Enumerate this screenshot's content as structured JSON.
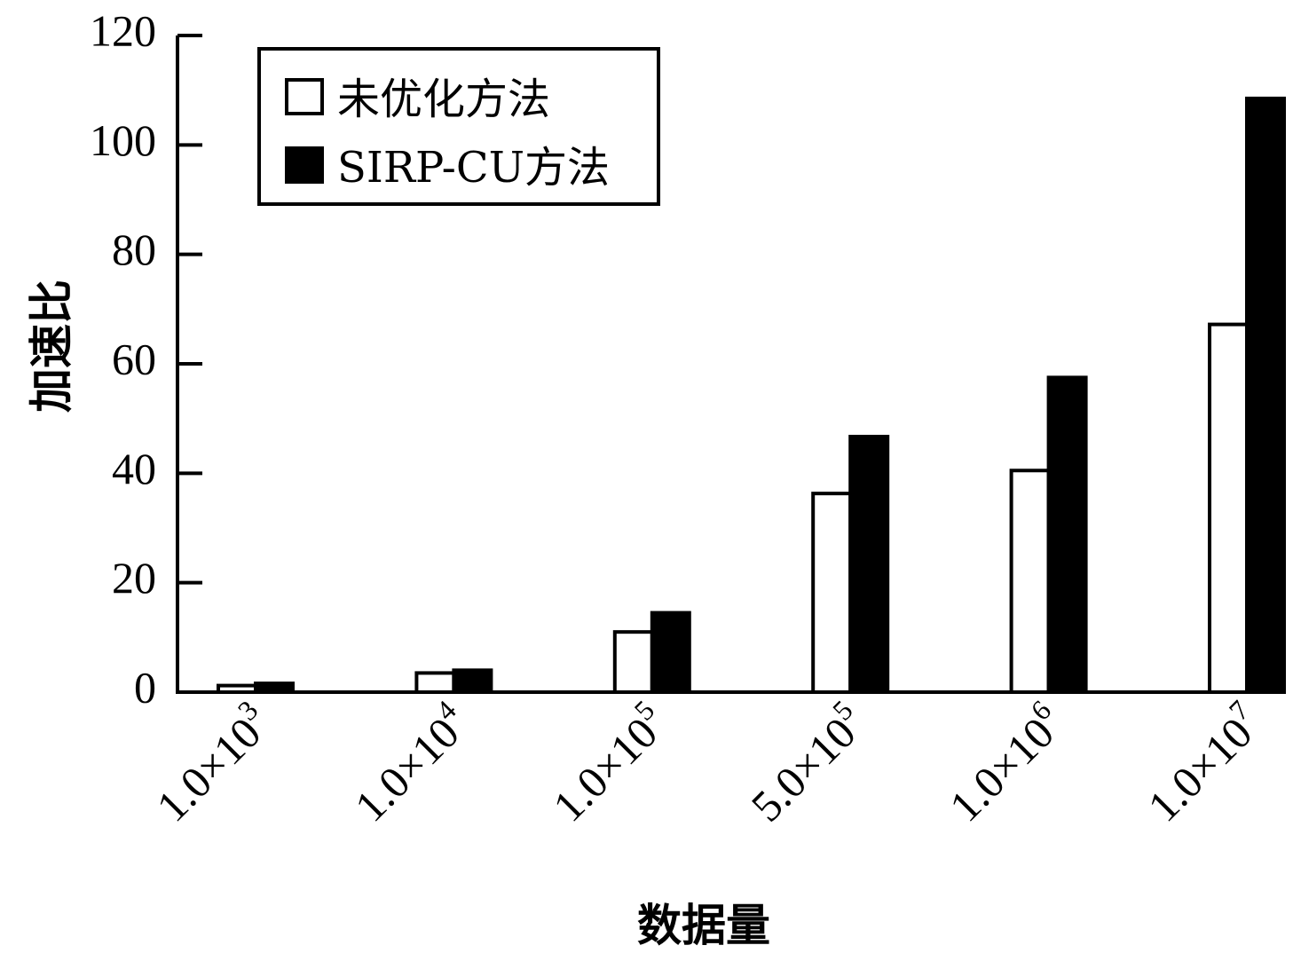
{
  "chart_data": {
    "type": "bar",
    "title": "",
    "xlabel": "数据量",
    "ylabel": "加速比",
    "ylim": [
      0,
      120
    ],
    "yticks": [
      "0",
      "20",
      "40",
      "60",
      "80",
      "100",
      "120"
    ],
    "categories": [
      {
        "mantissa": "1.0",
        "times": "×",
        "base": "10",
        "exp": "3"
      },
      {
        "mantissa": "1.0",
        "times": "×",
        "base": "10",
        "exp": "4"
      },
      {
        "mantissa": "1.0",
        "times": "×",
        "base": "10",
        "exp": "5"
      },
      {
        "mantissa": "5.0",
        "times": "×",
        "base": "10",
        "exp": "5"
      },
      {
        "mantissa": "1.0",
        "times": "×",
        "base": "10",
        "exp": "6"
      },
      {
        "mantissa": "1.0",
        "times": "×",
        "base": "10",
        "exp": "7"
      }
    ],
    "series": [
      {
        "name": "未优化方法",
        "fill": "#ffffff",
        "values": [
          1.2,
          3.5,
          11,
          36.3,
          40.5,
          67.2
        ]
      },
      {
        "name": "SIRP-CU方法",
        "fill": "#000000",
        "values": [
          1.6,
          4.0,
          14.5,
          46.7,
          57.5,
          108.5
        ]
      }
    ],
    "legend": {
      "position": "top-left",
      "boxed": true
    },
    "grid": false
  }
}
